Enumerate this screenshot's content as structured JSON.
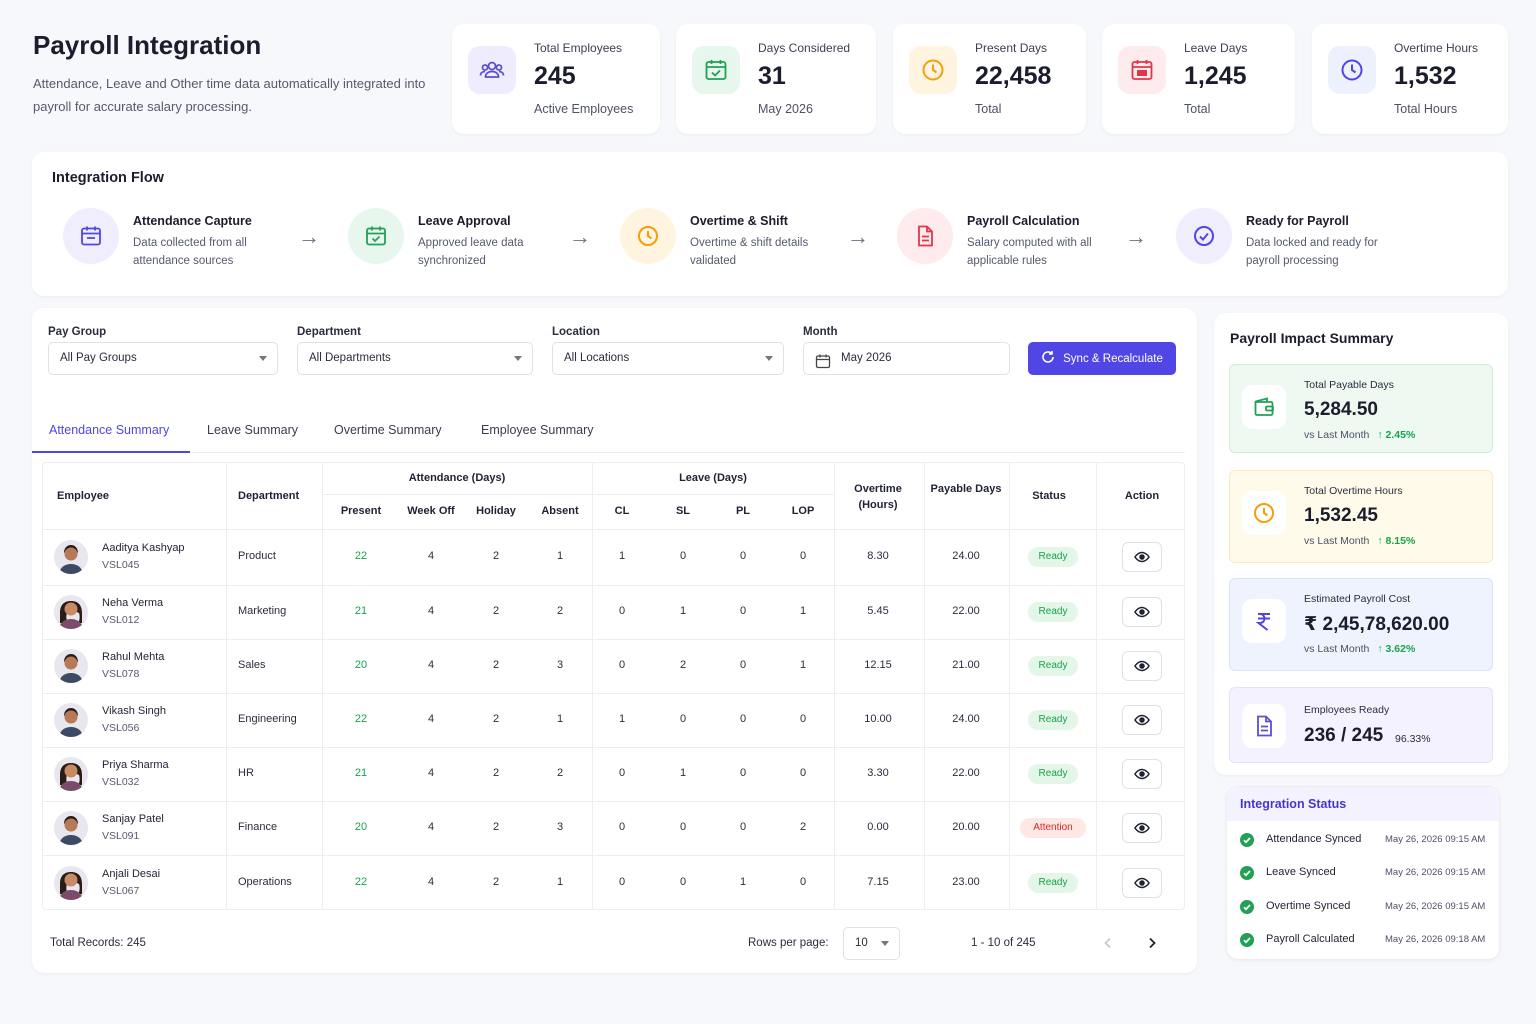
{
  "header": {
    "title": "Payroll Integration",
    "subtitle": "Attendance, Leave and Other time data automatically integrated into payroll for accurate salary processing."
  },
  "stats": [
    {
      "label": "Total Employees",
      "value": "245",
      "sub": "Active Employees",
      "icon": "users-icon",
      "color": "#5b4fd6"
    },
    {
      "label": "Days Considered",
      "value": "31",
      "sub": "May 2026",
      "icon": "calendar-check-icon",
      "color": "#22a055"
    },
    {
      "label": "Present Days",
      "value": "22,458",
      "sub": "Total",
      "icon": "clock-icon",
      "color": "#f59e0b"
    },
    {
      "label": "Leave Days",
      "value": "1,245",
      "sub": "Total",
      "icon": "calendar-x-icon",
      "color": "#e0364b"
    },
    {
      "label": "Overtime Hours",
      "value": "1,532",
      "sub": "Total Hours",
      "icon": "clock-icon",
      "color": "#4f46e5"
    }
  ],
  "flow": {
    "title": "Integration Flow",
    "steps": [
      {
        "title": "Attendance Capture",
        "desc": "Data collected from all attendance sources",
        "icon": "calendar-icon"
      },
      {
        "title": "Leave Approval",
        "desc": "Approved leave data synchronized",
        "icon": "calendar-check-icon"
      },
      {
        "title": "Overtime & Shift",
        "desc": "Overtime & shift details validated",
        "icon": "clock-icon"
      },
      {
        "title": "Payroll Calculation",
        "desc": "Salary computed with all applicable rules",
        "icon": "document-icon"
      },
      {
        "title": "Ready for Payroll",
        "desc": "Data locked and ready for payroll processing",
        "icon": "check-circle-icon"
      }
    ],
    "arrow": "→"
  },
  "filters": {
    "pay_group": {
      "label": "Pay Group",
      "value": "All Pay Groups"
    },
    "department": {
      "label": "Department",
      "value": "All Departments"
    },
    "location": {
      "label": "Location",
      "value": "All Locations"
    },
    "month": {
      "label": "Month",
      "value": "May 2026"
    },
    "sync_label": "Sync & Recalculate"
  },
  "tabs": [
    "Attendance Summary",
    "Leave Summary",
    "Overtime Summary",
    "Employee Summary"
  ],
  "table": {
    "headers": {
      "employee": "Employee",
      "department": "Department",
      "attendance_group": "Attendance (Days)",
      "leave_group": "Leave (Days)",
      "overtime": "Overtime (Hours)",
      "payable": "Payable Days",
      "status": "Status",
      "action": "Action",
      "sub": [
        "Present",
        "Week Off",
        "Holiday",
        "Absent",
        "CL",
        "SL",
        "PL",
        "LOP"
      ]
    },
    "rows": [
      {
        "name": "Aaditya Kashyap",
        "code": "VSL045",
        "gender": "m",
        "dept": "Product",
        "present": "22",
        "weekoff": "4",
        "holiday": "2",
        "absent": "1",
        "cl": "1",
        "sl": "0",
        "pl": "0",
        "lop": "0",
        "ot": "8.30",
        "payable": "24.00",
        "status": "Ready"
      },
      {
        "name": "Neha Verma",
        "code": "VSL012",
        "gender": "f",
        "dept": "Marketing",
        "present": "21",
        "weekoff": "4",
        "holiday": "2",
        "absent": "2",
        "cl": "0",
        "sl": "1",
        "pl": "0",
        "lop": "1",
        "ot": "5.45",
        "payable": "22.00",
        "status": "Ready"
      },
      {
        "name": "Rahul Mehta",
        "code": "VSL078",
        "gender": "m",
        "dept": "Sales",
        "present": "20",
        "weekoff": "4",
        "holiday": "2",
        "absent": "3",
        "cl": "0",
        "sl": "2",
        "pl": "0",
        "lop": "1",
        "ot": "12.15",
        "payable": "21.00",
        "status": "Ready"
      },
      {
        "name": "Vikash Singh",
        "code": "VSL056",
        "gender": "m",
        "dept": "Engineering",
        "present": "22",
        "weekoff": "4",
        "holiday": "2",
        "absent": "1",
        "cl": "1",
        "sl": "0",
        "pl": "0",
        "lop": "0",
        "ot": "10.00",
        "payable": "24.00",
        "status": "Ready"
      },
      {
        "name": "Priya Sharma",
        "code": "VSL032",
        "gender": "f",
        "dept": "HR",
        "present": "21",
        "weekoff": "4",
        "holiday": "2",
        "absent": "2",
        "cl": "0",
        "sl": "1",
        "pl": "0",
        "lop": "0",
        "ot": "3.30",
        "payable": "22.00",
        "status": "Ready"
      },
      {
        "name": "Sanjay Patel",
        "code": "VSL091",
        "gender": "m",
        "dept": "Finance",
        "present": "20",
        "weekoff": "4",
        "holiday": "2",
        "absent": "3",
        "cl": "0",
        "sl": "0",
        "pl": "0",
        "lop": "2",
        "ot": "0.00",
        "payable": "20.00",
        "status": "Attention"
      },
      {
        "name": "Anjali Desai",
        "code": "VSL067",
        "gender": "f",
        "dept": "Operations",
        "present": "22",
        "weekoff": "4",
        "holiday": "2",
        "absent": "1",
        "cl": "0",
        "sl": "0",
        "pl": "1",
        "lop": "0",
        "ot": "7.15",
        "payable": "23.00",
        "status": "Ready"
      }
    ]
  },
  "footer": {
    "total_records": "Total Records: 245",
    "rows_per_page_label": "Rows per page:",
    "rows_per_page": "10",
    "range": "1 - 10 of 245"
  },
  "impact": {
    "title": "Payroll Impact Summary",
    "cards": [
      {
        "label": "Total Payable Days",
        "value": "5,284.50",
        "cmp": "vs Last Month",
        "delta": "↑ 2.45%",
        "icon": "wallet-icon",
        "bg": "#eef9f1",
        "border": "#cdeed8",
        "accent": "#22a055"
      },
      {
        "label": "Total Overtime Hours",
        "value": "1,532.45",
        "cmp": "vs Last Month",
        "delta": "↑ 8.15%",
        "icon": "clock-icon",
        "bg": "#fffaea",
        "border": "#f8ebc2",
        "accent": "#f59e0b"
      },
      {
        "label": "Estimated Payroll Cost",
        "value": "₹ 2,45,78,620.00",
        "cmp": "vs Last Month",
        "delta": "↑ 3.62%",
        "icon": "rupee-icon",
        "bg": "#eff3fe",
        "border": "#dbe3fb",
        "accent": "#4f46e5"
      },
      {
        "label": "Employees Ready",
        "value": "236 / 245",
        "pct": "96.33%",
        "icon": "document-icon",
        "bg": "#f4f2fe",
        "border": "#e5e1fa",
        "accent": "#5b4fd6"
      }
    ]
  },
  "integration_status": {
    "title": "Integration Status",
    "items": [
      {
        "label": "Attendance Synced",
        "time": "May 26, 2026 09:15 AM"
      },
      {
        "label": "Leave Synced",
        "time": "May 26, 2026 09:15 AM"
      },
      {
        "label": "Overtime Synced",
        "time": "May 26, 2026 09:15 AM"
      },
      {
        "label": "Payroll Calculated",
        "time": "May 26, 2026 09:18 AM"
      }
    ]
  }
}
